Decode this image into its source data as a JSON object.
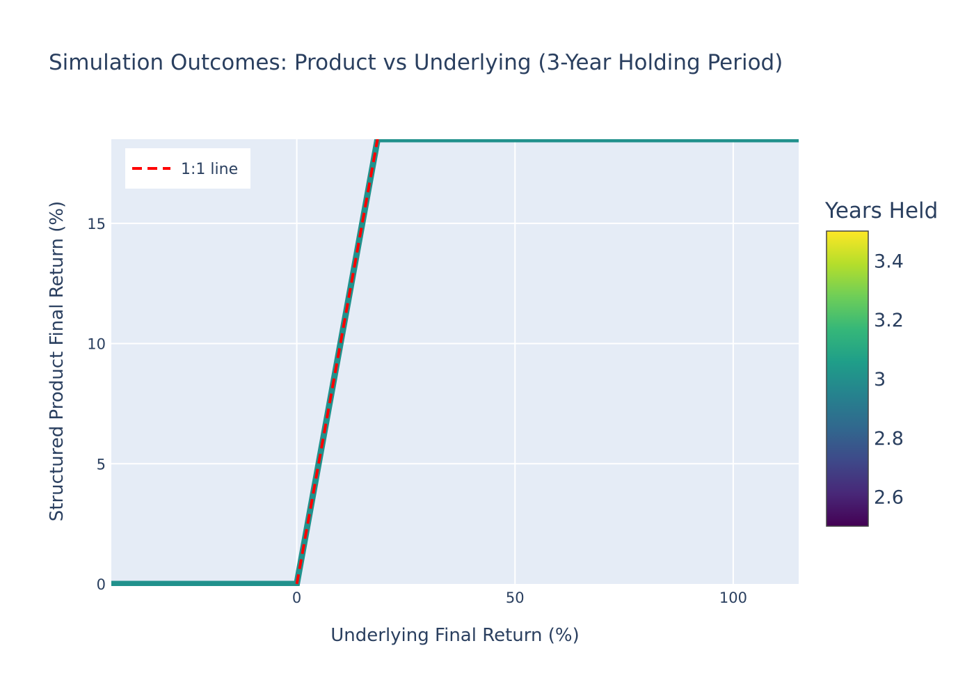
{
  "chart_data": {
    "type": "scatter",
    "title": "Simulation Outcomes: Product vs Underlying (3-Year Holding Period)",
    "xlabel": "Underlying Final Return (%)",
    "ylabel": "Structured Product Final Return (%)",
    "xlim": [
      -42.5,
      115
    ],
    "ylim": [
      0,
      18.5
    ],
    "x_ticks": [
      0,
      50,
      100
    ],
    "y_ticks": [
      0,
      5,
      10,
      15
    ],
    "grid": true,
    "series": [
      {
        "name": "",
        "mode": "markers",
        "color": "#21918c",
        "x": [
          -42.5,
          -30,
          -20,
          -10,
          -5,
          0,
          2,
          4,
          6,
          8,
          10,
          12,
          14,
          16,
          18,
          18.5,
          25,
          40,
          60,
          80,
          100,
          115
        ],
        "y": [
          0,
          0,
          0,
          0,
          0,
          0,
          2,
          4,
          6,
          8,
          10,
          12,
          14,
          16,
          18,
          18.5,
          18.5,
          18.5,
          18.5,
          18.5,
          18.5,
          18.5
        ]
      },
      {
        "name": "1:1 line",
        "mode": "line",
        "dash": "dash",
        "color": "#ff0000",
        "x": [
          0,
          18.5
        ],
        "y": [
          0,
          18.5
        ]
      }
    ],
    "legend": {
      "position": "top-left",
      "entries": [
        "1:1 line"
      ]
    },
    "colorbar": {
      "title": "Years Held",
      "range": [
        2.5,
        3.5
      ],
      "ticks": [
        2.6,
        2.8,
        3,
        3.2,
        3.4
      ],
      "tick_labels": [
        "2.6",
        "2.8",
        "3",
        "3.2",
        "3.4"
      ],
      "colorscale": [
        "#440154",
        "#482878",
        "#3e4989",
        "#31688e",
        "#26828e",
        "#1f9e89",
        "#35b779",
        "#6ece58",
        "#b5de2b",
        "#fde725"
      ]
    }
  }
}
